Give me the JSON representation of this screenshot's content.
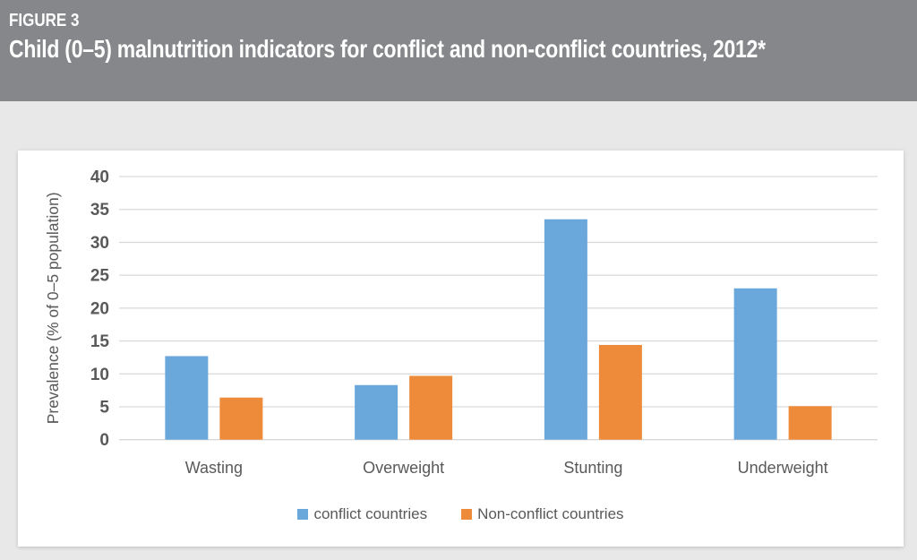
{
  "figure": {
    "label": "FIGURE 3",
    "title": "Child (0–5) malnutrition indicators for conflict and non-conflict countries, 2012*"
  },
  "colors": {
    "header_bg": "#85878A",
    "header_text": "#FFFFFF",
    "page_bg": "#E8E8E8",
    "panel_bg": "#FFFFFF",
    "gridline": "#D9D9D9",
    "axis_text": "#595959",
    "series_conflict": "#6AA7DB",
    "series_non_conflict": "#EE8B3B"
  },
  "chart_data": {
    "type": "bar",
    "categories": [
      "Wasting",
      "Overweight",
      "Stunting",
      "Underweight"
    ],
    "series": [
      {
        "name": "conflict countries",
        "color_key": "series_conflict",
        "values": [
          12.7,
          8.3,
          33.5,
          23.0
        ]
      },
      {
        "name": "Non-conflict countries",
        "color_key": "series_non_conflict",
        "values": [
          6.4,
          9.7,
          14.4,
          5.1
        ]
      }
    ],
    "title": "",
    "xlabel": "",
    "ylabel": "Prevalence (% of 0–5 population)",
    "ylim": [
      0,
      40
    ],
    "ytick_step": 5,
    "grid": true,
    "legend_position": "bottom"
  }
}
